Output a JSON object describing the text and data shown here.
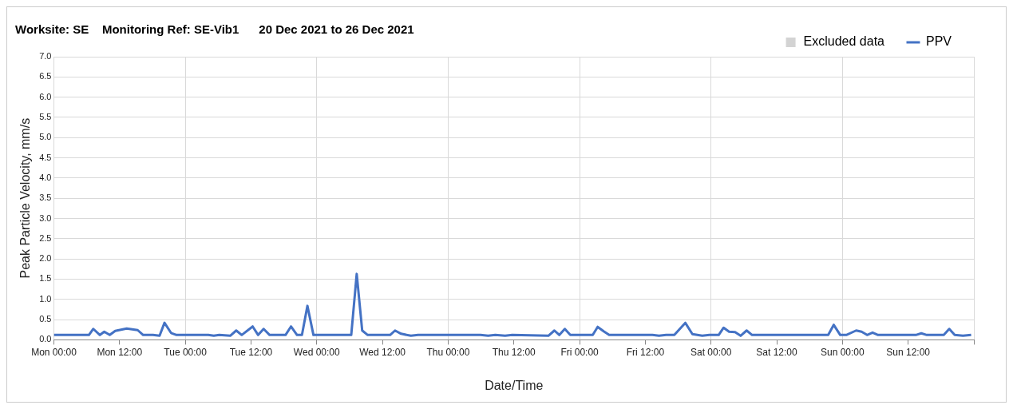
{
  "chart_data": {
    "type": "line",
    "title": "Worksite: SE    Monitoring Ref: SE-Vib1      20 Dec 2021 to 26 Dec 2021",
    "xlabel": "Date/Time",
    "ylabel": "Peak Particle Velocity, mm/s",
    "x": [
      "2021-12-20T00:00",
      "2021-12-20T06:24",
      "2021-12-20T07:12",
      "2021-12-20T08:24",
      "2021-12-20T09:12",
      "2021-12-20T10:12",
      "2021-12-20T11:12",
      "2021-12-20T13:18",
      "2021-12-20T15:18",
      "2021-12-20T16:18",
      "2021-12-20T18:06",
      "2021-12-20T19:18",
      "2021-12-20T20:12",
      "2021-12-20T21:24",
      "2021-12-20T22:24",
      "2021-12-21T04:12",
      "2021-12-21T05:12",
      "2021-12-21T06:12",
      "2021-12-21T08:12",
      "2021-12-21T09:18",
      "2021-12-21T10:18",
      "2021-12-21T12:18",
      "2021-12-21T13:18",
      "2021-12-21T14:18",
      "2021-12-21T15:24",
      "2021-12-21T18:18",
      "2021-12-21T19:18",
      "2021-12-21T20:24",
      "2021-12-21T21:18",
      "2021-12-21T22:18",
      "2021-12-21T23:24",
      "2021-12-22T06:18",
      "2021-12-22T07:18",
      "2021-12-22T08:18",
      "2021-12-22T09:18",
      "2021-12-22T13:24",
      "2021-12-22T14:18",
      "2021-12-22T15:24",
      "2021-12-22T17:12",
      "2021-12-22T18:30",
      "2021-12-23T05:54",
      "2021-12-23T07:18",
      "2021-12-23T08:36",
      "2021-12-23T10:24",
      "2021-12-23T11:42",
      "2021-12-23T18:18",
      "2021-12-23T19:24",
      "2021-12-23T20:18",
      "2021-12-23T21:18",
      "2021-12-23T22:18",
      "2021-12-24T02:24",
      "2021-12-24T03:18",
      "2021-12-24T04:24",
      "2021-12-24T05:24",
      "2021-12-24T13:18",
      "2021-12-24T14:30",
      "2021-12-24T15:48",
      "2021-12-24T17:18",
      "2021-12-24T19:18",
      "2021-12-24T20:36",
      "2021-12-24T22:24",
      "2021-12-24T23:42",
      "2021-12-25T01:24",
      "2021-12-25T02:18",
      "2021-12-25T03:18",
      "2021-12-25T04:24",
      "2021-12-25T05:24",
      "2021-12-25T06:30",
      "2021-12-25T07:30",
      "2021-12-25T21:24",
      "2021-12-25T22:24",
      "2021-12-25T23:36",
      "2021-12-26T00:42",
      "2021-12-26T02:30",
      "2021-12-26T03:30",
      "2021-12-26T04:30",
      "2021-12-26T05:30",
      "2021-12-26T06:30",
      "2021-12-26T13:24",
      "2021-12-26T14:24",
      "2021-12-26T15:24",
      "2021-12-26T18:30",
      "2021-12-26T19:30",
      "2021-12-26T20:30",
      "2021-12-26T22:00",
      "2021-12-26T23:30"
    ],
    "series": [
      {
        "name": "Excluded data",
        "type": "area",
        "color": "#d3d3d3",
        "values": [
          null,
          null,
          null,
          null,
          null,
          null,
          null,
          null,
          null,
          null,
          null,
          null,
          null,
          null,
          null,
          null,
          null,
          null,
          null,
          null,
          null,
          null,
          null,
          null,
          null,
          null,
          null,
          null,
          null,
          null,
          null,
          null,
          null,
          null,
          null,
          null,
          null,
          null,
          null,
          null,
          null,
          null,
          null,
          null,
          null,
          null,
          null,
          null,
          null,
          null,
          null,
          null,
          null,
          null,
          null,
          null,
          null,
          null,
          null,
          null,
          null,
          null,
          null,
          null,
          null,
          null,
          null,
          null,
          null,
          null,
          null,
          null,
          null,
          null,
          null,
          null,
          null,
          null,
          null,
          null,
          null,
          null,
          null,
          null,
          null,
          null
        ]
      },
      {
        "name": "PPV",
        "color": "#4472c4",
        "values": [
          0.12,
          0.12,
          0.27,
          0.12,
          0.2,
          0.12,
          0.22,
          0.28,
          0.24,
          0.12,
          0.12,
          0.1,
          0.42,
          0.17,
          0.12,
          0.12,
          0.1,
          0.12,
          0.1,
          0.23,
          0.12,
          0.33,
          0.12,
          0.27,
          0.12,
          0.12,
          0.33,
          0.12,
          0.12,
          0.84,
          0.12,
          0.12,
          1.63,
          0.23,
          0.12,
          0.12,
          0.23,
          0.15,
          0.1,
          0.12,
          0.12,
          0.1,
          0.12,
          0.1,
          0.12,
          0.1,
          0.23,
          0.12,
          0.27,
          0.12,
          0.12,
          0.32,
          0.21,
          0.12,
          0.12,
          0.1,
          0.12,
          0.12,
          0.42,
          0.14,
          0.1,
          0.12,
          0.12,
          0.3,
          0.2,
          0.19,
          0.1,
          0.23,
          0.12,
          0.12,
          0.37,
          0.12,
          0.12,
          0.23,
          0.2,
          0.12,
          0.18,
          0.12,
          0.12,
          0.16,
          0.12,
          0.12,
          0.27,
          0.12,
          0.1,
          0.12
        ]
      }
    ],
    "xlim": [
      "2021-12-20T00:00",
      "2021-12-27T00:00"
    ],
    "xticks": [
      {
        "value": "2021-12-20T00:00",
        "label": "Mon 00:00"
      },
      {
        "value": "2021-12-20T12:00",
        "label": "Mon 12:00"
      },
      {
        "value": "2021-12-21T00:00",
        "label": "Tue 00:00"
      },
      {
        "value": "2021-12-21T12:00",
        "label": "Tue 12:00"
      },
      {
        "value": "2021-12-22T00:00",
        "label": "Wed 00:00"
      },
      {
        "value": "2021-12-22T12:00",
        "label": "Wed 12:00"
      },
      {
        "value": "2021-12-23T00:00",
        "label": "Thu 00:00"
      },
      {
        "value": "2021-12-23T12:00",
        "label": "Thu 12:00"
      },
      {
        "value": "2021-12-24T00:00",
        "label": "Fri 00:00"
      },
      {
        "value": "2021-12-24T12:00",
        "label": "Fri 12:00"
      },
      {
        "value": "2021-12-25T00:00",
        "label": "Sat 00:00"
      },
      {
        "value": "2021-12-25T12:00",
        "label": "Sat 12:00"
      },
      {
        "value": "2021-12-26T00:00",
        "label": "Sun 00:00"
      },
      {
        "value": "2021-12-26T12:00",
        "label": "Sun 12:00"
      },
      {
        "value": "2021-12-27T00:00",
        "label": null
      }
    ],
    "ylim": [
      0,
      7
    ],
    "yticks": [
      {
        "value": 0,
        "label": "0.0"
      },
      {
        "value": 0.5,
        "label": "0.5"
      },
      {
        "value": 1,
        "label": "1.0"
      },
      {
        "value": 1.5,
        "label": "1.5"
      },
      {
        "value": 2,
        "label": "2.0"
      },
      {
        "value": 2.5,
        "label": "2.5"
      },
      {
        "value": 3,
        "label": "3.0"
      },
      {
        "value": 3.5,
        "label": "3.5"
      },
      {
        "value": 4,
        "label": "4.0"
      },
      {
        "value": 4.5,
        "label": "4.5"
      },
      {
        "value": 5,
        "label": "5.0"
      },
      {
        "value": 5.5,
        "label": "5.5"
      },
      {
        "value": 6,
        "label": "6.0"
      },
      {
        "value": 6.5,
        "label": "6.5"
      },
      {
        "value": 7,
        "label": "7.0"
      }
    ],
    "grid": true,
    "legend": "top right",
    "marker": "none",
    "line_style": "solid"
  }
}
